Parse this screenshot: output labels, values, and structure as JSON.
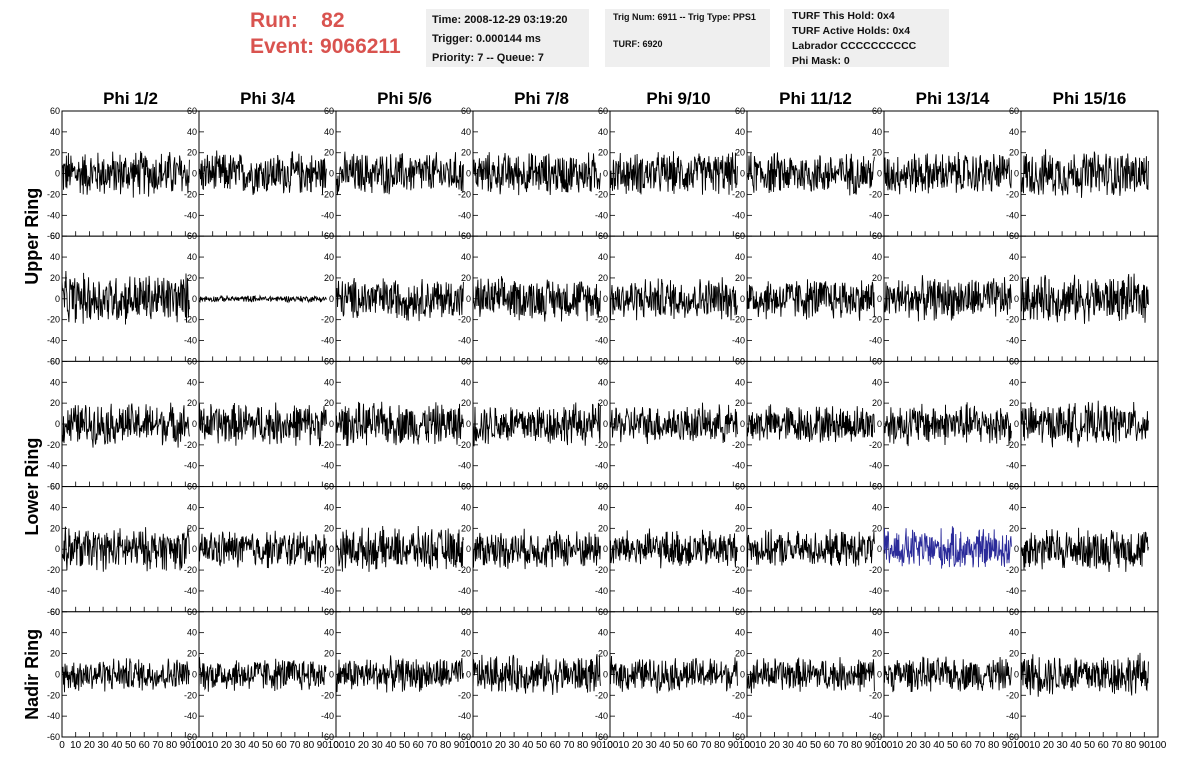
{
  "header": {
    "run_label": "Run:",
    "run_value": "82",
    "event_label": "Event:",
    "event_value": "9066211",
    "info1": [
      "Time: 2008-12-29 03:19:20",
      "Trigger: 0.000144 ms",
      "Priority: 7 -- Queue: 7"
    ],
    "info2": [
      "Trig Num: 6911 -- Trig Type: PPS1",
      "TURF: 6920"
    ],
    "info3": [
      "TURF This Hold: 0x4",
      "TURF Active Holds: 0x4",
      "Labrador CCCCCCCCCC",
      "Phi Mask: 0"
    ]
  },
  "colors": {
    "trace": "#000000",
    "highlight_trace": "#2b2b9a",
    "header_red": "#d9534f",
    "info_bg": "#efefef"
  },
  "chart_data": {
    "type": "line",
    "title": "",
    "column_titles": [
      "Phi 1/2",
      "Phi 3/4",
      "Phi 5/6",
      "Phi 7/8",
      "Phi 9/10",
      "Phi 11/12",
      "Phi 13/14",
      "Phi 15/16"
    ],
    "ring_labels": [
      "Upper Ring",
      "Lower Ring",
      "Nadir Ring"
    ],
    "rows": 5,
    "ylim": [
      -60,
      60
    ],
    "yticks": [
      -60,
      -40,
      -20,
      0,
      20,
      40,
      60
    ],
    "xlim": [
      0,
      100
    ],
    "xticks": [
      0,
      10,
      20,
      30,
      40,
      50,
      60,
      70,
      80,
      90,
      100
    ],
    "n_samples": 260,
    "trace_amplitude": [
      [
        22,
        20,
        20,
        20,
        20,
        20,
        20,
        22
      ],
      [
        24,
        3,
        20,
        20,
        20,
        20,
        20,
        22
      ],
      [
        20,
        20,
        20,
        20,
        18,
        18,
        20,
        20
      ],
      [
        20,
        18,
        20,
        18,
        18,
        17,
        20,
        20
      ],
      [
        16,
        16,
        16,
        18,
        16,
        16,
        16,
        20
      ]
    ],
    "highlighted": [
      {
        "row": 3,
        "col": 6
      }
    ]
  }
}
